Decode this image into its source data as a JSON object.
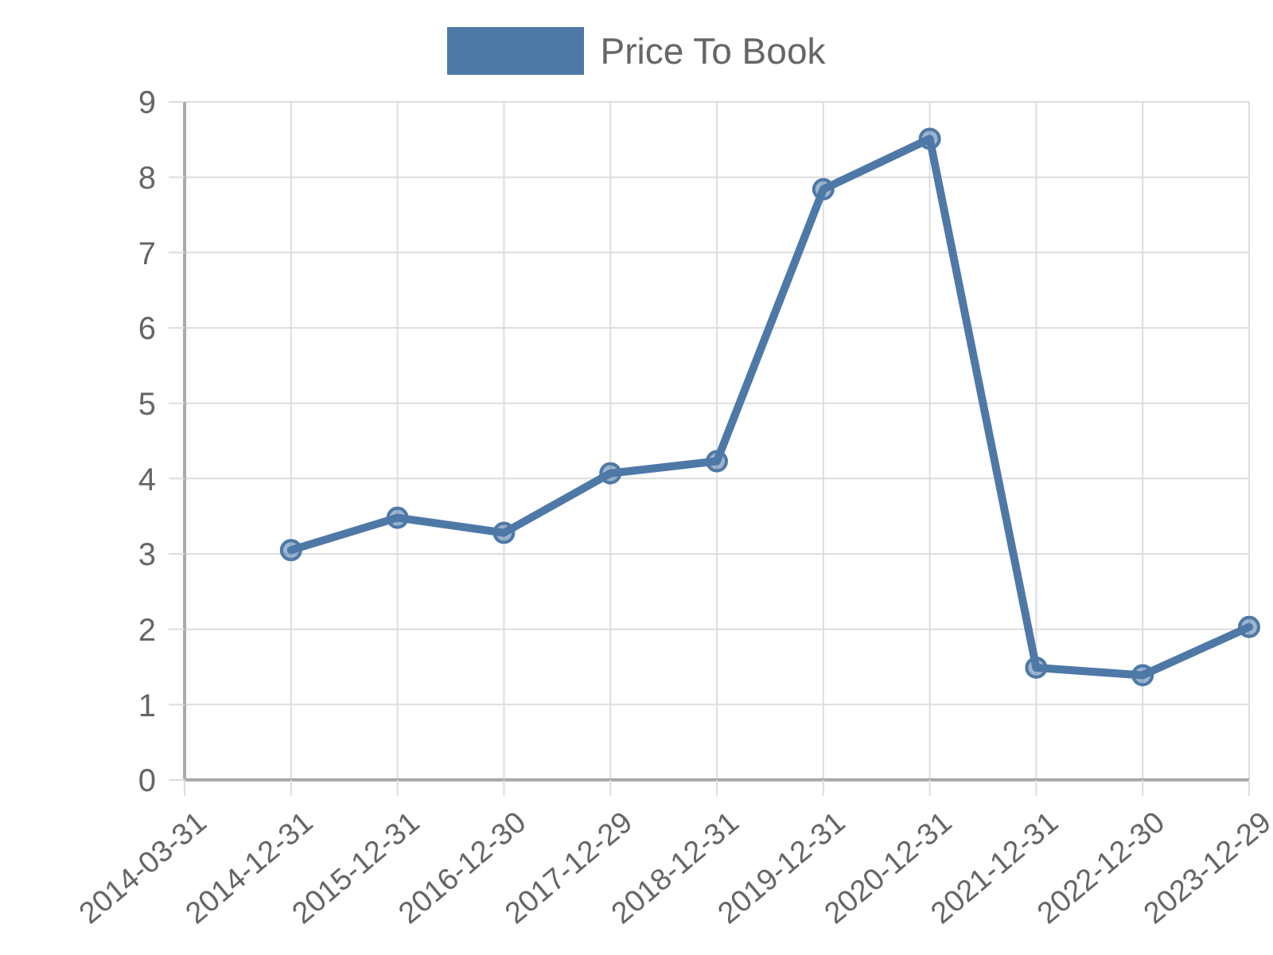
{
  "chart_data": {
    "type": "line",
    "categories": [
      "2014-03-31",
      "2014-12-31",
      "2015-12-31",
      "2016-12-30",
      "2017-12-29",
      "2018-12-31",
      "2019-12-31",
      "2020-12-31",
      "2021-12-31",
      "2022-12-30",
      "2023-12-29"
    ],
    "series": [
      {
        "name": "Price To Book",
        "color": "#4e79a7",
        "values": [
          null,
          3.05,
          3.48,
          3.28,
          4.07,
          4.23,
          7.84,
          8.51,
          1.49,
          1.39,
          2.03
        ]
      }
    ],
    "ylim": [
      0,
      9
    ],
    "yticks": [
      0,
      1,
      2,
      3,
      4,
      5,
      6,
      7,
      8,
      9
    ],
    "grid": true,
    "legend": "top",
    "marker": "circle",
    "line_style": "solid"
  }
}
